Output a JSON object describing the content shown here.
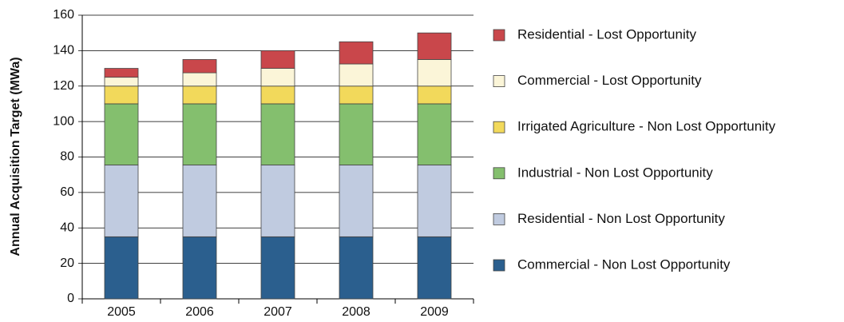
{
  "chart_data": {
    "type": "stacked-bar",
    "y_label": "Annual Acquisition Target (MWa)",
    "categories": [
      "2005",
      "2006",
      "2007",
      "2008",
      "2009"
    ],
    "series": [
      {
        "name": "Commercial - Non Lost Opportunity",
        "color": "#2b5f8e",
        "values": [
          35,
          35,
          35,
          35,
          35
        ]
      },
      {
        "name": "Residential - Non Lost Opportunity",
        "color": "#c0cbe0",
        "values": [
          40.5,
          40.5,
          40.5,
          40.5,
          40.5
        ]
      },
      {
        "name": "Industrial - Non Lost Opportunity",
        "color": "#84bf6e",
        "values": [
          34.5,
          34.5,
          34.5,
          34.5,
          34.5
        ]
      },
      {
        "name": "Irrigated Agriculture - Non Lost Opportunity",
        "color": "#f2d95b",
        "values": [
          10,
          10,
          10,
          10,
          10
        ]
      },
      {
        "name": "Commercial - Lost Opportunity",
        "color": "#fbf5d8",
        "values": [
          5,
          7.5,
          10,
          12.5,
          15
        ]
      },
      {
        "name": "Residential - Lost Opportunity",
        "color": "#c9474b",
        "values": [
          5,
          7.5,
          10,
          12.5,
          15
        ]
      }
    ],
    "ylim": [
      0,
      160
    ],
    "yticks": [
      0,
      20,
      40,
      60,
      80,
      100,
      120,
      140,
      160
    ],
    "grid": true
  }
}
